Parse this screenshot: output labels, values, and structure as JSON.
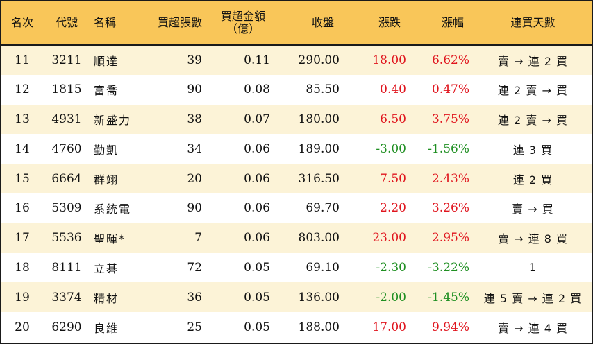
{
  "headers": {
    "rank": "名次",
    "code": "代號",
    "name": "名稱",
    "net_buy_lots": "買超張數",
    "net_buy_amount_line1": "買超金額",
    "net_buy_amount_line2": "（億）",
    "close": "收盤",
    "change": "漲跌",
    "change_pct": "漲幅",
    "consecutive_days": "連買天數"
  },
  "colors": {
    "header_bg": "#f9c659",
    "row_alt_bg": "#fcf3d7",
    "up": "#e0151e",
    "down": "#1f8f22"
  },
  "rows": [
    {
      "rank": "11",
      "code": "3211",
      "name": "順達",
      "lots": "39",
      "amount": "0.11",
      "close": "290.00",
      "change": "18.00",
      "pct": "6.62%",
      "days": "賣 → 連 2 買",
      "dir": "up"
    },
    {
      "rank": "12",
      "code": "1815",
      "name": "富喬",
      "lots": "90",
      "amount": "0.08",
      "close": "85.50",
      "change": "0.40",
      "pct": "0.47%",
      "days": "連 2 賣 → 買",
      "dir": "up"
    },
    {
      "rank": "13",
      "code": "4931",
      "name": "新盛力",
      "lots": "38",
      "amount": "0.07",
      "close": "180.00",
      "change": "6.50",
      "pct": "3.75%",
      "days": "連 2 賣 → 買",
      "dir": "up"
    },
    {
      "rank": "14",
      "code": "4760",
      "name": "勤凱",
      "lots": "34",
      "amount": "0.06",
      "close": "189.00",
      "change": "-3.00",
      "pct": "-1.56%",
      "days": "連 3 買",
      "dir": "down"
    },
    {
      "rank": "15",
      "code": "6664",
      "name": "群翊",
      "lots": "20",
      "amount": "0.06",
      "close": "316.50",
      "change": "7.50",
      "pct": "2.43%",
      "days": "連 2 買",
      "dir": "up"
    },
    {
      "rank": "16",
      "code": "5309",
      "name": "系統電",
      "lots": "90",
      "amount": "0.06",
      "close": "69.70",
      "change": "2.20",
      "pct": "3.26%",
      "days": "賣 → 買",
      "dir": "up"
    },
    {
      "rank": "17",
      "code": "5536",
      "name": "聖暉*",
      "lots": "7",
      "amount": "0.06",
      "close": "803.00",
      "change": "23.00",
      "pct": "2.95%",
      "days": "賣 → 連 8 買",
      "dir": "up"
    },
    {
      "rank": "18",
      "code": "8111",
      "name": "立碁",
      "lots": "72",
      "amount": "0.05",
      "close": "69.10",
      "change": "-2.30",
      "pct": "-3.22%",
      "days": "1",
      "dir": "down"
    },
    {
      "rank": "19",
      "code": "3374",
      "name": "精材",
      "lots": "36",
      "amount": "0.05",
      "close": "136.00",
      "change": "-2.00",
      "pct": "-1.45%",
      "days": "連 5 賣 → 連 2 買",
      "dir": "down"
    },
    {
      "rank": "20",
      "code": "6290",
      "name": "良維",
      "lots": "25",
      "amount": "0.05",
      "close": "188.00",
      "change": "17.00",
      "pct": "9.94%",
      "days": "賣 → 連 4 買",
      "dir": "up"
    }
  ]
}
